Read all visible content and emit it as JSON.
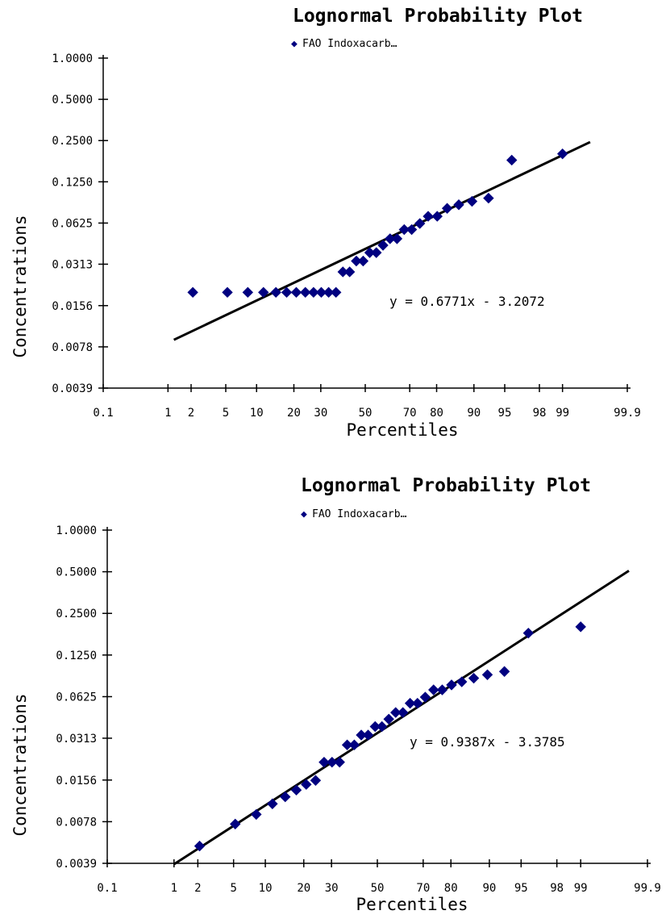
{
  "chart_data": [
    {
      "type": "scatter",
      "title": "Lognormal Probability Plot",
      "legend": "FAO Indoxacarb…",
      "xlabel": "Percentiles",
      "ylabel": "Concentrations",
      "equation": "y = 0.6771x - 3.2072",
      "yscale": "log",
      "xscale": "probability",
      "y_ticks": [
        "1.0000",
        "0.5000",
        "0.2500",
        "0.1250",
        "0.0625",
        "0.0313",
        "0.0156",
        "0.0078",
        "0.0039"
      ],
      "x_ticks": [
        "0.1",
        "1",
        "2",
        "5",
        "10",
        "20",
        "30",
        "50",
        "70",
        "80",
        "90",
        "95",
        "98",
        "99",
        "99.9"
      ],
      "ylim": [
        0.0039,
        1.0
      ],
      "xlim": [
        0.1,
        99.9
      ],
      "series": [
        {
          "color": "#000080",
          "x": [
            2.1,
            5.2,
            8.3,
            11.5,
            14.6,
            17.7,
            20.8,
            24.0,
            27.1,
            30.2,
            33.3,
            36.5,
            39.6,
            42.7,
            45.8,
            49.0,
            52.1,
            55.2,
            58.3,
            61.5,
            64.6,
            67.7,
            70.8,
            74.0,
            77.1,
            80.2,
            83.3,
            86.5,
            89.6,
            92.7,
            95.8,
            99.0
          ],
          "y": [
            0.0195,
            0.0195,
            0.0195,
            0.0195,
            0.0195,
            0.0195,
            0.0195,
            0.0195,
            0.0195,
            0.0195,
            0.0195,
            0.0195,
            0.0275,
            0.0275,
            0.033,
            0.033,
            0.038,
            0.038,
            0.043,
            0.048,
            0.048,
            0.056,
            0.056,
            0.062,
            0.07,
            0.07,
            0.08,
            0.085,
            0.09,
            0.095,
            0.18,
            0.2
          ]
        }
      ],
      "trendline": {
        "slope": 0.6771,
        "intercept": -3.2072,
        "x_range": [
          1.2,
          99.6
        ]
      }
    },
    {
      "type": "scatter",
      "title": "Lognormal Probability Plot",
      "legend": "FAO Indoxacarb…",
      "xlabel": "Percentiles",
      "ylabel": "Concentrations",
      "equation": "y = 0.9387x - 3.3785",
      "yscale": "log",
      "xscale": "probability",
      "y_ticks": [
        "1.0000",
        "0.5000",
        "0.2500",
        "0.1250",
        "0.0625",
        "0.0313",
        "0.0156",
        "0.0078",
        "0.0039"
      ],
      "x_ticks": [
        "0.1",
        "1",
        "2",
        "5",
        "10",
        "20",
        "30",
        "50",
        "70",
        "80",
        "90",
        "95",
        "98",
        "99",
        "99.9"
      ],
      "ylim": [
        0.0039,
        1.0
      ],
      "xlim": [
        0.1,
        99.9
      ],
      "series": [
        {
          "color": "#000080",
          "x": [
            2.1,
            5.2,
            8.3,
            11.5,
            14.6,
            17.7,
            20.8,
            24.0,
            27.1,
            30.2,
            33.3,
            36.5,
            39.6,
            42.7,
            45.8,
            49.0,
            52.1,
            55.2,
            58.3,
            61.5,
            64.6,
            67.7,
            70.8,
            74.0,
            77.1,
            80.2,
            83.3,
            86.5,
            89.6,
            92.7,
            95.8,
            99.0
          ],
          "y": [
            0.0052,
            0.0075,
            0.0088,
            0.0105,
            0.0118,
            0.0132,
            0.0145,
            0.0155,
            0.021,
            0.021,
            0.021,
            0.028,
            0.028,
            0.033,
            0.033,
            0.038,
            0.038,
            0.043,
            0.048,
            0.048,
            0.056,
            0.056,
            0.062,
            0.07,
            0.07,
            0.076,
            0.08,
            0.085,
            0.09,
            0.095,
            0.18,
            0.2
          ]
        }
      ],
      "trendline": {
        "slope": 0.9387,
        "intercept": -3.3785,
        "x_range": [
          1.0,
          99.8
        ]
      }
    }
  ]
}
